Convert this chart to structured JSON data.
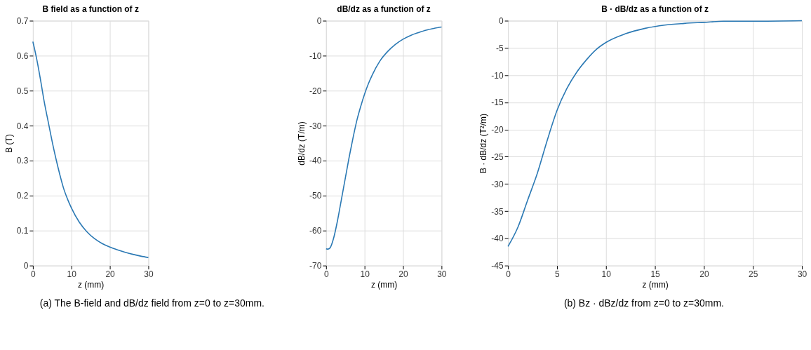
{
  "chart_data": [
    {
      "type": "line",
      "title": "B field as a function of z",
      "xlabel": "z (mm)",
      "ylabel": "B (T)",
      "xlim": [
        0,
        30
      ],
      "xticks": [
        0,
        10,
        20,
        30
      ],
      "ylim": [
        0,
        0.7
      ],
      "yticks": [
        0,
        0.1,
        0.2,
        0.3,
        0.4,
        0.5,
        0.6,
        0.7
      ],
      "grid": true,
      "series": [
        {
          "color": "#2b79b4",
          "x": [
            0,
            1,
            2,
            3,
            4,
            5,
            6,
            7,
            8,
            9,
            10,
            12,
            14,
            16,
            18,
            20,
            22,
            24,
            26,
            28,
            30
          ],
          "values": [
            0.64,
            0.59,
            0.53,
            0.465,
            0.41,
            0.355,
            0.305,
            0.26,
            0.22,
            0.19,
            0.165,
            0.125,
            0.097,
            0.077,
            0.063,
            0.053,
            0.045,
            0.038,
            0.032,
            0.027,
            0.023
          ]
        }
      ],
      "annotations": [
        "(a) The B-field and dB/dz field from z=0 to z=30mm."
      ]
    },
    {
      "type": "line",
      "title": "dB/dz as a function of z",
      "xlabel": "z (mm)",
      "ylabel": "dB/dz (T/m)",
      "xlim": [
        0,
        30
      ],
      "xticks": [
        0,
        10,
        20,
        30
      ],
      "ylim": [
        -70,
        0
      ],
      "yticks": [
        -70,
        -60,
        -50,
        -40,
        -30,
        -20,
        -10,
        0
      ],
      "grid": true,
      "series": [
        {
          "color": "#2b79b4",
          "x": [
            0,
            0.5,
            1,
            2,
            3,
            4,
            5,
            6,
            7,
            8,
            9,
            10,
            11,
            12,
            14,
            16,
            18,
            20,
            22,
            24,
            26,
            28,
            30
          ],
          "values": [
            -65.2,
            -65.3,
            -65,
            -62,
            -57,
            -51,
            -45,
            -39,
            -33.5,
            -28.5,
            -24.5,
            -21,
            -18,
            -15.5,
            -11.5,
            -8.8,
            -6.8,
            -5.3,
            -4.2,
            -3.4,
            -2.7,
            -2.2,
            -1.8
          ]
        }
      ]
    },
    {
      "type": "line",
      "title": "B · dB/dz as a function of  z",
      "xlabel": "z (mm)",
      "ylabel": "B · dB/dz (T²/m)",
      "xlim": [
        0,
        30
      ],
      "xticks": [
        0,
        5,
        10,
        15,
        20,
        25,
        30
      ],
      "ylim": [
        -45,
        0
      ],
      "yticks": [
        -45,
        -40,
        -35,
        -30,
        -25,
        -20,
        -15,
        -10,
        -5,
        0
      ],
      "grid": true,
      "series": [
        {
          "color": "#2b79b4",
          "x": [
            0,
            1,
            2,
            3,
            4,
            5,
            6,
            7,
            8,
            9,
            10,
            12,
            14,
            16,
            18,
            20,
            22,
            25,
            30
          ],
          "values": [
            -41.5,
            -38,
            -33,
            -28,
            -22,
            -16.5,
            -12.5,
            -9.5,
            -7.2,
            -5.3,
            -4.0,
            -2.4,
            -1.4,
            -0.8,
            -0.5,
            -0.3,
            -0.1,
            -0.1,
            0
          ]
        }
      ],
      "annotations": [
        "(b) Bz · dBz/dz from z=0 to z=30mm."
      ]
    }
  ]
}
